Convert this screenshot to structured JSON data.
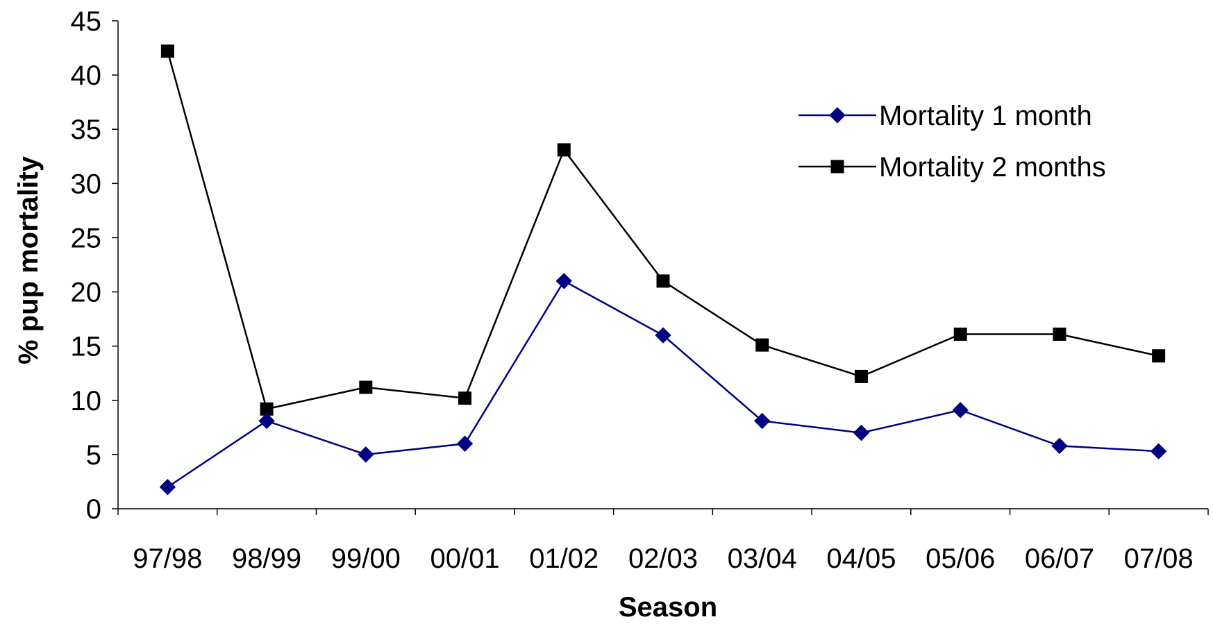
{
  "chart_data": {
    "type": "line",
    "title": "",
    "xlabel": "Season",
    "ylabel": "% pup mortality",
    "categories": [
      "97/98",
      "98/99",
      "99/00",
      "00/01",
      "01/02",
      "02/03",
      "03/04",
      "04/05",
      "05/06",
      "06/07",
      "07/08"
    ],
    "ylim": [
      0,
      45
    ],
    "yticks": [
      "0",
      "5",
      "10",
      "15",
      "20",
      "25",
      "30",
      "35",
      "40",
      "45"
    ],
    "grid": false,
    "legend": "top-right",
    "series": [
      {
        "name": "Mortality 1 month",
        "color": "#000080",
        "marker": "diamond",
        "values": [
          2,
          8.1,
          5,
          6,
          21,
          16,
          8.1,
          7,
          9.1,
          5.8,
          5.3
        ]
      },
      {
        "name": "Mortality 2 months",
        "color": "#000000",
        "marker": "square",
        "values": [
          42.2,
          9.2,
          11.2,
          10.2,
          33.1,
          21,
          15.1,
          12.2,
          16.1,
          16.1,
          14.1
        ]
      }
    ]
  }
}
